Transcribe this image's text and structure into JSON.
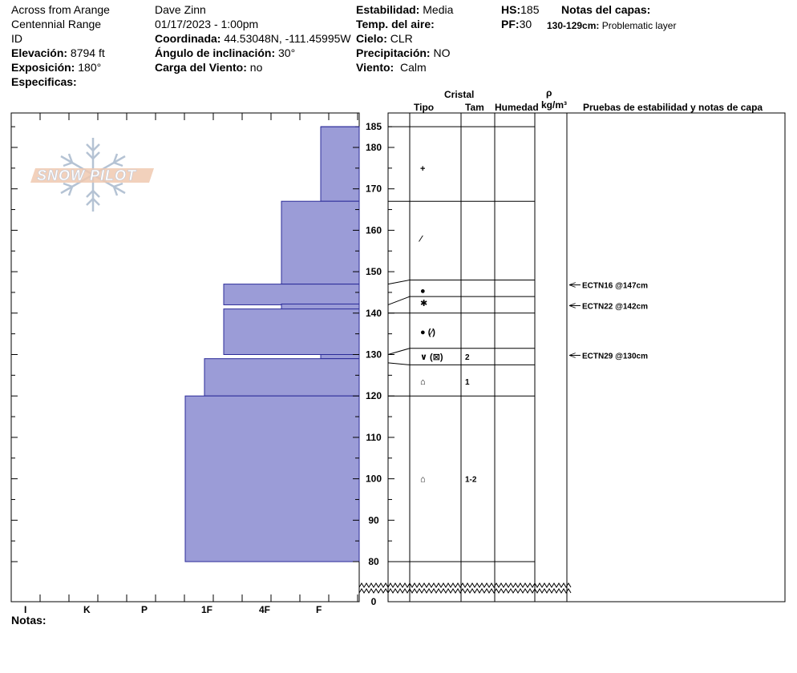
{
  "header": {
    "location": "Across from Arange",
    "range": "Centennial Range",
    "state": "ID",
    "elevation_label": "Elevación:",
    "elevation_value": "8794 ft",
    "aspect_label": "Exposición:",
    "aspect_value": "180°",
    "specifics_label": "Especificas:",
    "observer": "Dave Zinn",
    "datetime": "01/17/2023 - 1:00pm",
    "coord_label": "Coordinada:",
    "coord_value": "44.53048N, -111.45995W",
    "slope_label": "Ángulo de inclinación:",
    "slope_value": "30°",
    "wind_load_label": "Carga del Viento:",
    "wind_load_value": "no",
    "stability_label": "Estabilidad:",
    "stability_value": "Media",
    "air_temp_label": "Temp. del aire:",
    "air_temp_value": "",
    "sky_label": "Cielo:",
    "sky_value": "CLR",
    "precip_label": "Precipitación:",
    "precip_value": "NO",
    "wind_label": "Viento:",
    "wind_value": "Calm",
    "hs_label": "HS:",
    "hs_value": "185",
    "pf_label": "PF:",
    "pf_value": "30",
    "layer_notes_label": "Notas del capas:",
    "layer_note_range": "130-129cm:",
    "layer_note_text": "Problematic layer"
  },
  "columns": {
    "crystal": "Cristal",
    "type": "Tipo",
    "size": "Tam",
    "moisture": "Humedad",
    "rho": "ρ",
    "density_unit": "kg/m³",
    "tests": "Pruebas de estabilidad y notas de capa"
  },
  "hardness_labels": [
    "I",
    "K",
    "P",
    "1F",
    "4F",
    "F"
  ],
  "notes_label": "Notas:",
  "logo_text": "SNOW PILOT",
  "height_ticks": [
    "185",
    "180",
    "170",
    "160",
    "150",
    "140",
    "130",
    "120",
    "110",
    "100",
    "90",
    "80",
    "0"
  ],
  "chart_data": {
    "type": "snow-profile",
    "height_unit": "cm",
    "height_range": [
      80,
      185
    ],
    "total_depth": 185,
    "hardness_scale": [
      "F",
      "4F",
      "1F",
      "P",
      "K",
      "I"
    ],
    "layers": [
      {
        "top": 185,
        "bottom": 167,
        "hardness": "F",
        "grain": "+",
        "size": "",
        "moisture": ""
      },
      {
        "top": 167,
        "bottom": 147,
        "hardness": "4F",
        "grain": "/",
        "size": "",
        "moisture": ""
      },
      {
        "top": 147,
        "bottom": 142,
        "hardness": "1F+",
        "grain": "●",
        "size": "",
        "moisture": ""
      },
      {
        "top": 142,
        "bottom": 141,
        "hardness": "4F",
        "grain": "",
        "size": "",
        "moisture": ""
      },
      {
        "top": 141,
        "bottom": 130,
        "hardness": "1F+",
        "grain": "●(/)",
        "size": "",
        "moisture": ""
      },
      {
        "top": 130,
        "bottom": 129,
        "hardness": "F+",
        "grain": "∨(⊠)",
        "size": "2",
        "moisture": ""
      },
      {
        "top": 129,
        "bottom": 120,
        "hardness": "1F",
        "grain": "⌂",
        "size": "1",
        "moisture": ""
      },
      {
        "top": 120,
        "bottom": 80,
        "hardness": "1F-",
        "grain": "⌂",
        "size": "1-2",
        "moisture": ""
      }
    ],
    "grain_rows": [
      {
        "glyph": "+",
        "height": 175,
        "size": ""
      },
      {
        "glyph": "⁄",
        "height": 158,
        "size": ""
      },
      {
        "glyph": "●",
        "height": 145.5,
        "size": ""
      },
      {
        "glyph": "✱",
        "height": 142.5,
        "size": ""
      },
      {
        "glyph": "● (⁄)",
        "height": 135.5,
        "size": ""
      },
      {
        "glyph": "∨ (⊠)",
        "height": 129.5,
        "size": "2"
      },
      {
        "glyph": "⌂",
        "height": 123.5,
        "size": "1"
      },
      {
        "glyph": "⌂",
        "height": 100,
        "size": "1-2"
      }
    ],
    "tests": [
      {
        "label": "ECTN16 @147cm",
        "height": 147
      },
      {
        "label": "ECTN22 @142cm",
        "height": 142
      },
      {
        "label": "ECTN29 @130cm",
        "height": 130
      }
    ]
  }
}
